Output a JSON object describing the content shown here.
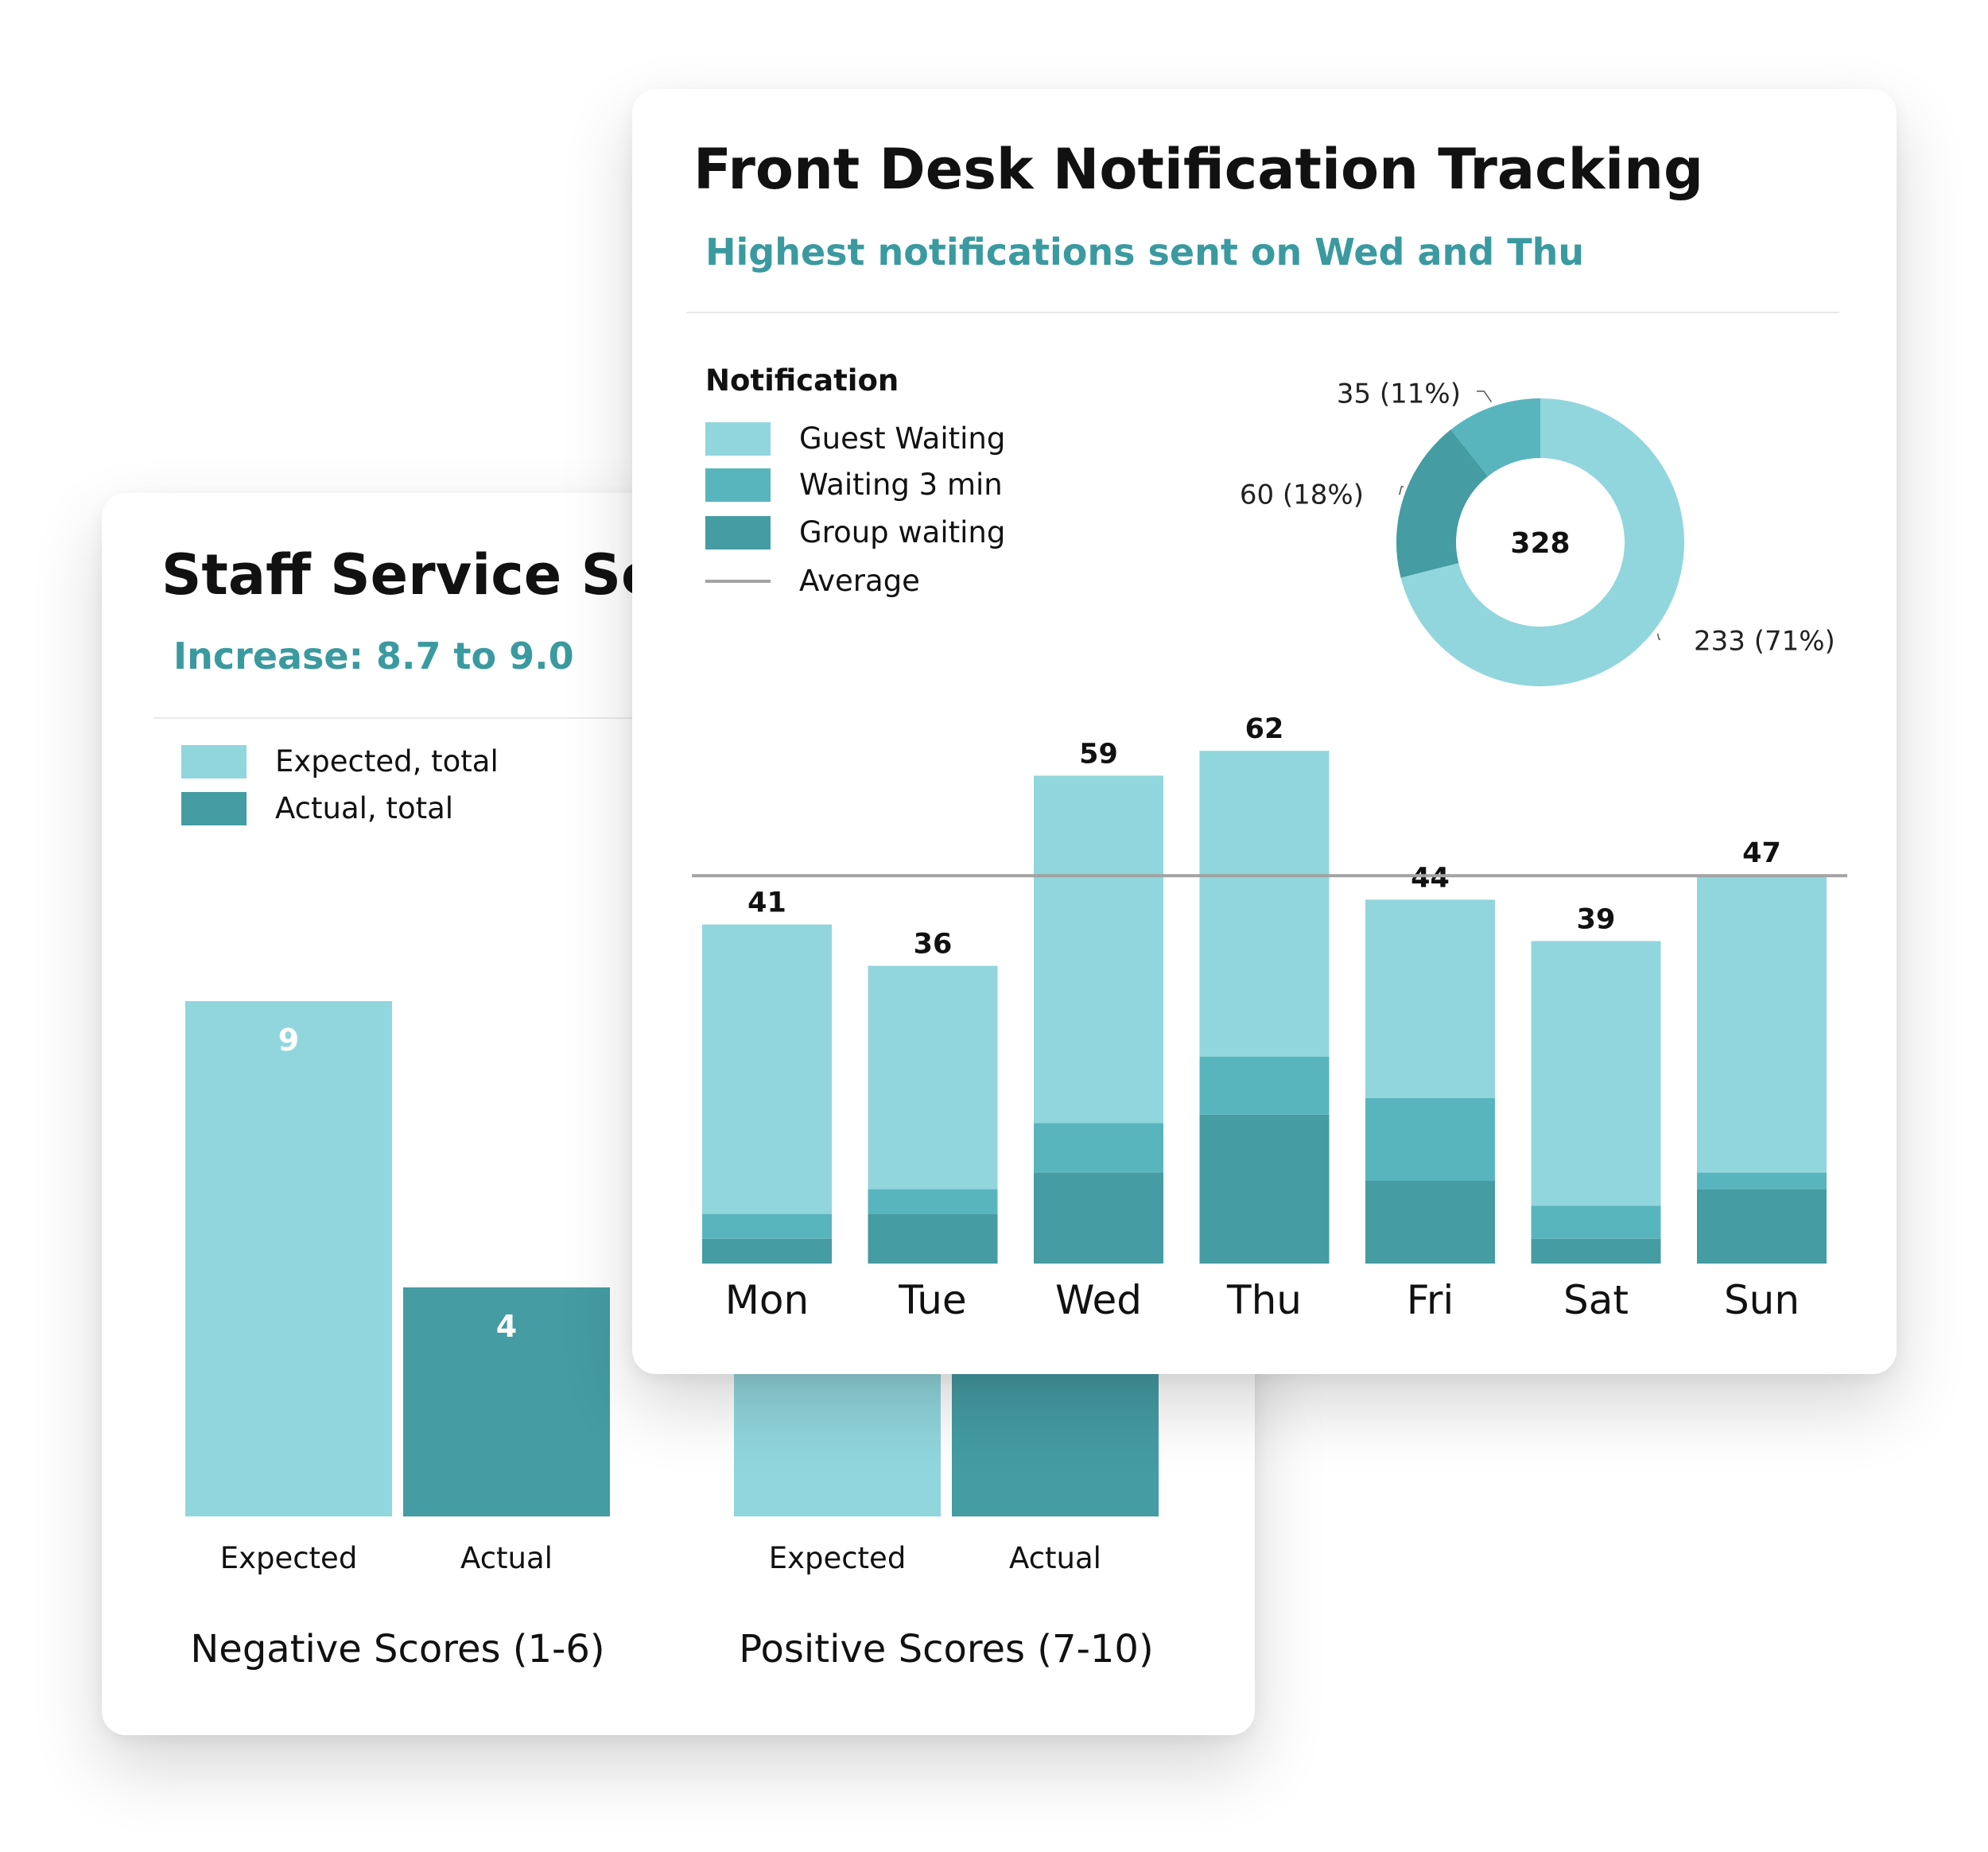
{
  "colors": {
    "light": "#91d6dd",
    "mid": "#59b5bd",
    "dark": "#459ca3",
    "accent": "#3a9aa0",
    "average_line": "#a3a3a3"
  },
  "staff_card": {
    "title": "Staff Service Scores",
    "subtitle": "Increase: 8.7 to 9.0",
    "legend": [
      {
        "label": "Expected, total",
        "color": "#91d6dd"
      },
      {
        "label": "Actual, total",
        "color": "#459ca3"
      }
    ]
  },
  "front_card": {
    "title": "Front Desk Notification Tracking",
    "subtitle": "Highest notifications sent on Wed and Thu",
    "legend_title": "Notification",
    "legend": [
      {
        "label": "Guest Waiting",
        "color": "#91d6dd"
      },
      {
        "label": "Waiting 3 min",
        "color": "#59b5bd"
      },
      {
        "label": "Group waiting",
        "color": "#459ca3"
      },
      {
        "label": "Average",
        "color": "#a3a3a3",
        "line": true
      }
    ]
  },
  "chart_data": [
    {
      "type": "bar",
      "title": "Staff Service Scores",
      "groups": [
        {
          "name": "Negative Scores (1-6)",
          "categories": [
            "Expected",
            "Actual"
          ],
          "values": [
            9,
            4
          ]
        },
        {
          "name": "Positive Scores (7-10)",
          "categories": [
            "Expected",
            "Actual"
          ]
        }
      ],
      "series": [
        {
          "name": "Expected, total",
          "color": "#91d6dd"
        },
        {
          "name": "Actual, total",
          "color": "#459ca3"
        }
      ]
    },
    {
      "type": "pie",
      "title": "Notification",
      "center_label": "328",
      "slices": [
        {
          "name": "Guest Waiting",
          "value": 233,
          "label": "233 (71%)",
          "color": "#91d6dd"
        },
        {
          "name": "Group waiting",
          "value": 60,
          "label": "60 (18%)",
          "color": "#459ca3"
        },
        {
          "name": "Waiting 3 min",
          "value": 35,
          "label": "35 (11%)",
          "color": "#59b5bd"
        }
      ]
    },
    {
      "type": "bar",
      "stacked": true,
      "title": "Front Desk Notification Tracking",
      "categories": [
        "Mon",
        "Tue",
        "Wed",
        "Thu",
        "Fri",
        "Sat",
        "Sun"
      ],
      "totals": [
        41,
        36,
        59,
        62,
        44,
        39,
        47
      ],
      "average": 46.9,
      "series": [
        {
          "name": "Group waiting",
          "values": [
            3,
            6,
            11,
            18,
            10,
            3,
            9
          ]
        },
        {
          "name": "Waiting 3 min",
          "values": [
            3,
            3,
            6,
            7,
            10,
            4,
            2
          ]
        },
        {
          "name": "Guest Waiting",
          "values": [
            35,
            27,
            42,
            37,
            24,
            32,
            36
          ]
        }
      ]
    }
  ]
}
